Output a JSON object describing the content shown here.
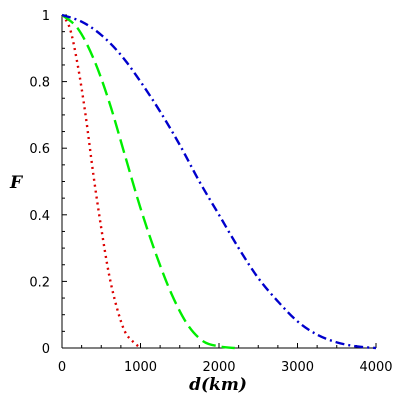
{
  "chart_data": {
    "type": "line",
    "title": "",
    "xlabel": "d(km)",
    "ylabel": "F",
    "xlim": [
      0,
      4000
    ],
    "ylim": [
      0,
      1
    ],
    "x_ticks": [
      0,
      1000,
      2000,
      3000,
      4000
    ],
    "x_tick_labels": [
      "0",
      "1000",
      "2000",
      "3000",
      "4000"
    ],
    "y_ticks": [
      0,
      0.2,
      0.4,
      0.6,
      0.8,
      1
    ],
    "y_tick_labels": [
      "0",
      "0.2",
      "0.4",
      "0.6",
      "0.8",
      "1"
    ],
    "grid": false,
    "legend": "none",
    "series": [
      {
        "color": "#dd0000",
        "line_style": "dotted",
        "x": [
          0,
          100,
          200,
          300,
          400,
          500,
          600,
          700,
          800,
          900,
          1000
        ],
        "y": [
          1.0,
          0.96,
          0.85,
          0.7,
          0.52,
          0.36,
          0.22,
          0.12,
          0.05,
          0.02,
          0.0
        ]
      },
      {
        "color": "#00ee00",
        "line_style": "dashed",
        "x": [
          0,
          200,
          400,
          600,
          800,
          1000,
          1200,
          1400,
          1600,
          1800,
          2000,
          2200
        ],
        "y": [
          1.0,
          0.96,
          0.87,
          0.74,
          0.58,
          0.42,
          0.28,
          0.16,
          0.07,
          0.02,
          0.005,
          0.0
        ]
      },
      {
        "color": "#0000cc",
        "line_style": "dashdot",
        "x": [
          0,
          250,
          500,
          750,
          1000,
          1250,
          1500,
          1750,
          2000,
          2250,
          2500,
          2750,
          3000,
          3250,
          3500,
          3750,
          4000
        ],
        "y": [
          1.0,
          0.98,
          0.94,
          0.88,
          0.8,
          0.71,
          0.61,
          0.5,
          0.4,
          0.3,
          0.21,
          0.14,
          0.08,
          0.04,
          0.017,
          0.005,
          0.0
        ]
      }
    ]
  }
}
